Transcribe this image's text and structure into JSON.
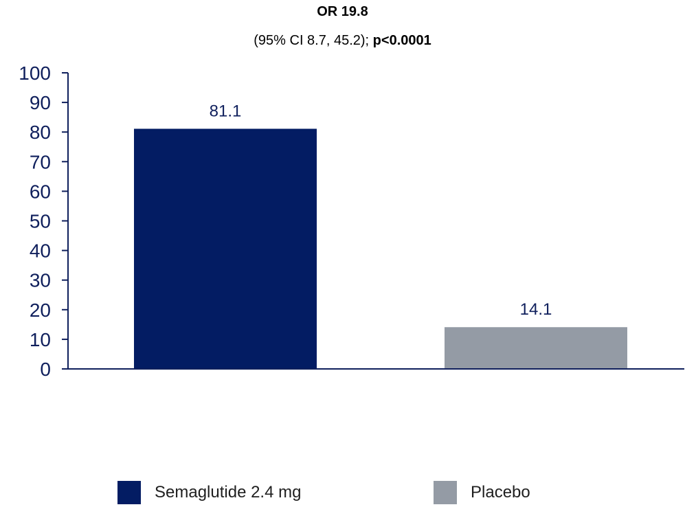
{
  "title_line1": "OR 19.8",
  "title_line2_prefix": "(95% CI 8.7, 45.2); ",
  "title_line2_bold": "p<0.0001",
  "colors": {
    "axis": "#0f1f5c",
    "tick_text": "#0f1f5c",
    "semaglutide": "#031c63",
    "placebo": "#949ba5"
  },
  "chart_data": {
    "type": "bar",
    "categories": [
      "Semaglutide 2.4 mg",
      "Placebo"
    ],
    "values": [
      81.1,
      14.1
    ],
    "data_labels": [
      "81.1",
      "14.1"
    ],
    "ylim": [
      0,
      100
    ],
    "yticks": [
      0,
      10,
      20,
      30,
      40,
      50,
      60,
      70,
      80,
      90,
      100
    ],
    "grid": false,
    "legend_position": "bottom"
  },
  "legend": [
    {
      "label": "Semaglutide 2.4 mg",
      "color": "#031c63"
    },
    {
      "label": "Placebo",
      "color": "#949ba5"
    }
  ]
}
